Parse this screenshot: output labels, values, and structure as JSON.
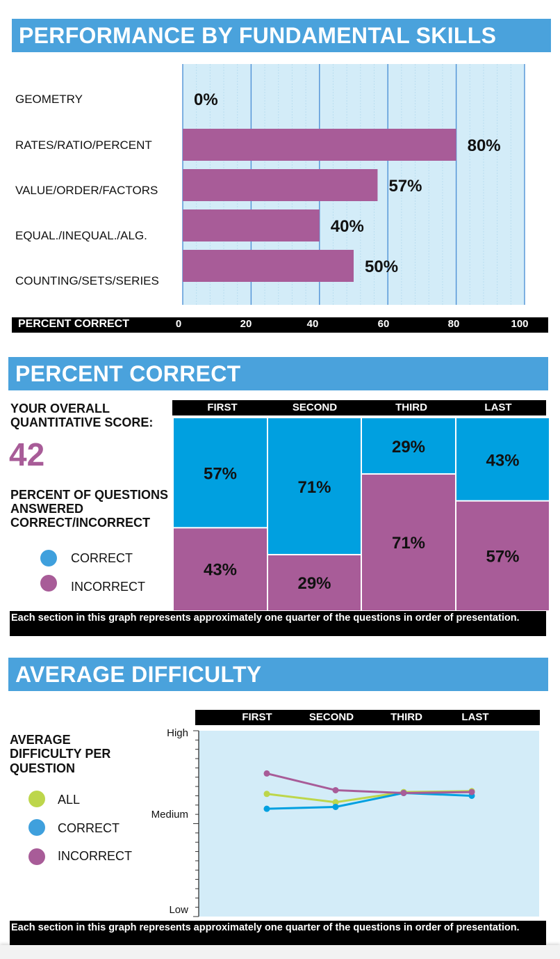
{
  "section1": {
    "title": "PERFORMANCE BY FUNDAMENTAL SKILLS",
    "axis_title": "PERCENT CORRECT"
  },
  "section2": {
    "title": "PERCENT CORRECT",
    "score_label_1": "YOUR OVERALL",
    "score_label_2": "QUANTITATIVE SCORE:",
    "score": "42",
    "desc_1": "PERCENT OF QUESTIONS",
    "desc_2": "ANSWERED",
    "desc_3": "CORRECT/INCORRECT",
    "legend": [
      {
        "label": "CORRECT",
        "color": "#3fa0dd"
      },
      {
        "label": "INCORRECT",
        "color": "#a85c98"
      }
    ],
    "note": "Each section in this graph represents approximately one quarter of the questions in order of presentation."
  },
  "section3": {
    "title": "AVERAGE DIFFICULTY",
    "desc_1": "AVERAGE",
    "desc_2": "DIFFICULTY PER",
    "desc_3": "QUESTION",
    "legend": [
      {
        "label": "ALL",
        "color": "#bdd64b"
      },
      {
        "label": "CORRECT",
        "color": "#3fa0dd"
      },
      {
        "label": "INCORRECT",
        "color": "#a85c98"
      }
    ],
    "note": "Each section in this graph represents approximately one quarter of the questions in order of presentation."
  },
  "colors": {
    "header_blue": "#4aa2dc",
    "purple": "#a85c98",
    "blue": "#00a0e0",
    "plot_bg": "#d3ecf8"
  },
  "chart_data": [
    {
      "type": "bar",
      "orientation": "horizontal",
      "title": "PERFORMANCE BY FUNDAMENTAL SKILLS",
      "xlabel": "PERCENT CORRECT",
      "categories": [
        "GEOMETRY",
        "RATES/RATIO/PERCENT",
        "VALUE/ORDER/FACTORS",
        "EQUAL./INEQUAL./ALG.",
        "COUNTING/SETS/SERIES"
      ],
      "values": [
        0,
        80,
        57,
        40,
        50
      ],
      "value_labels": [
        "0%",
        "80%",
        "57%",
        "40%",
        "50%"
      ],
      "xlim": [
        0,
        100
      ],
      "xticks": [
        "0",
        "20",
        "40",
        "60",
        "80",
        "100"
      ]
    },
    {
      "type": "bar",
      "stacked": true,
      "title": "PERCENT CORRECT",
      "categories": [
        "FIRST",
        "SECOND",
        "THIRD",
        "LAST"
      ],
      "series": [
        {
          "name": "CORRECT",
          "values": [
            57,
            71,
            29,
            43
          ],
          "labels": [
            "57%",
            "71%",
            "29%",
            "43%"
          ]
        },
        {
          "name": "INCORRECT",
          "values": [
            43,
            29,
            71,
            57
          ],
          "labels": [
            "43%",
            "29%",
            "71%",
            "57%"
          ]
        }
      ]
    },
    {
      "type": "line",
      "title": "AVERAGE DIFFICULTY",
      "categories": [
        "FIRST",
        "SECOND",
        "THIRD",
        "LAST"
      ],
      "ytick_labels": [
        "High",
        "Medium",
        "Low"
      ],
      "ylim": [
        0,
        100
      ],
      "yticks": [
        100,
        50,
        0
      ],
      "series": [
        {
          "name": "ALL",
          "values": [
            66,
            61.5,
            67,
            67.5
          ]
        },
        {
          "name": "CORRECT",
          "values": [
            58,
            59,
            66.5,
            65
          ]
        },
        {
          "name": "INCORRECT",
          "values": [
            77,
            68,
            66.5,
            67
          ]
        }
      ]
    }
  ]
}
